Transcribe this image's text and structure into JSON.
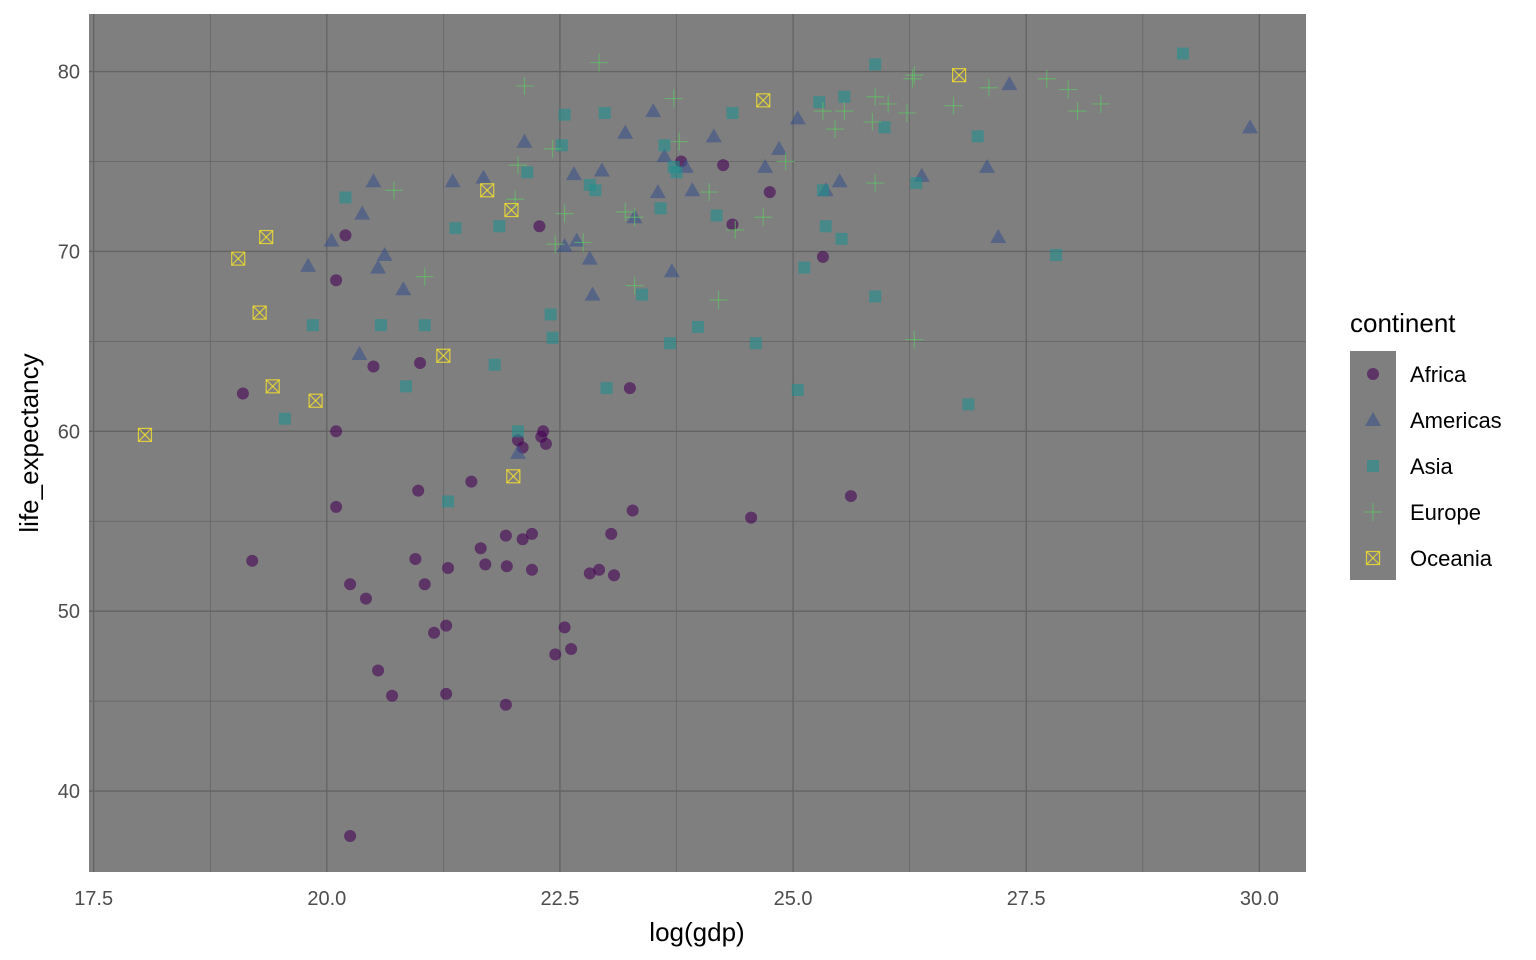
{
  "chart_data": {
    "type": "scatter",
    "title": "",
    "xlabel": "log(gdp)",
    "ylabel": "life_expectancy",
    "xlim": [
      17.45,
      30.5
    ],
    "ylim": [
      35.5,
      83.2
    ],
    "x_ticks": [
      17.5,
      20.0,
      22.5,
      25.0,
      27.5,
      30.0
    ],
    "x_tick_labels": [
      "17.5",
      "20.0",
      "22.5",
      "25.0",
      "27.5",
      "30.0"
    ],
    "y_ticks": [
      40,
      50,
      60,
      70,
      80
    ],
    "y_tick_labels": [
      "40",
      "50",
      "60",
      "70",
      "80"
    ],
    "grid": true,
    "panel_background": "#7f7f7f",
    "grid_color": "#636363",
    "point_alpha": 0.6,
    "legend": {
      "title": "continent",
      "position": "right",
      "background": "#7f7f7f"
    },
    "series": [
      {
        "name": "Africa",
        "shape": "circle",
        "color": "#440154",
        "points": [
          [
            20.25,
            37.5
          ],
          [
            19.1,
            62.1
          ],
          [
            19.2,
            52.8
          ],
          [
            20.1,
            68.4
          ],
          [
            20.2,
            70.9
          ],
          [
            20.1,
            55.8
          ],
          [
            20.1,
            60.0
          ],
          [
            20.25,
            51.5
          ],
          [
            20.42,
            50.7
          ],
          [
            20.55,
            46.7
          ],
          [
            20.5,
            63.6
          ],
          [
            20.7,
            45.3
          ],
          [
            20.95,
            52.9
          ],
          [
            20.98,
            56.7
          ],
          [
            21.0,
            63.8
          ],
          [
            21.05,
            51.5
          ],
          [
            21.15,
            48.8
          ],
          [
            21.28,
            49.2
          ],
          [
            21.3,
            52.4
          ],
          [
            21.28,
            45.4
          ],
          [
            21.55,
            57.2
          ],
          [
            21.65,
            53.5
          ],
          [
            21.7,
            52.6
          ],
          [
            21.92,
            54.2
          ],
          [
            21.93,
            52.5
          ],
          [
            21.92,
            44.8
          ],
          [
            22.05,
            59.5
          ],
          [
            22.1,
            59.1
          ],
          [
            22.1,
            54.0
          ],
          [
            22.2,
            54.3
          ],
          [
            22.2,
            52.3
          ],
          [
            22.28,
            71.4
          ],
          [
            22.3,
            59.7
          ],
          [
            22.32,
            60.0
          ],
          [
            22.35,
            59.3
          ],
          [
            22.45,
            47.6
          ],
          [
            22.55,
            49.1
          ],
          [
            22.62,
            47.9
          ],
          [
            22.82,
            52.1
          ],
          [
            22.92,
            52.3
          ],
          [
            23.05,
            54.3
          ],
          [
            23.08,
            52.0
          ],
          [
            23.25,
            62.4
          ],
          [
            23.28,
            55.6
          ],
          [
            23.8,
            75.0
          ],
          [
            24.25,
            74.8
          ],
          [
            24.35,
            71.5
          ],
          [
            24.55,
            55.2
          ],
          [
            24.75,
            73.3
          ],
          [
            25.32,
            69.7
          ],
          [
            25.62,
            56.4
          ]
        ]
      },
      {
        "name": "Americas",
        "shape": "triangle",
        "color": "#3b528b",
        "points": [
          [
            19.8,
            69.2
          ],
          [
            20.05,
            70.6
          ],
          [
            20.35,
            64.3
          ],
          [
            20.38,
            72.1
          ],
          [
            20.5,
            73.9
          ],
          [
            20.55,
            69.1
          ],
          [
            20.62,
            69.8
          ],
          [
            20.82,
            67.9
          ],
          [
            21.35,
            73.9
          ],
          [
            21.68,
            74.1
          ],
          [
            22.05,
            58.8
          ],
          [
            22.12,
            76.1
          ],
          [
            22.55,
            70.3
          ],
          [
            22.65,
            74.3
          ],
          [
            22.68,
            70.6
          ],
          [
            22.82,
            69.6
          ],
          [
            22.85,
            67.6
          ],
          [
            22.95,
            74.5
          ],
          [
            23.2,
            76.6
          ],
          [
            23.3,
            71.9
          ],
          [
            23.5,
            77.8
          ],
          [
            23.55,
            73.3
          ],
          [
            23.62,
            75.3
          ],
          [
            23.7,
            68.9
          ],
          [
            23.85,
            74.7
          ],
          [
            23.92,
            73.4
          ],
          [
            24.15,
            76.4
          ],
          [
            24.7,
            74.7
          ],
          [
            24.85,
            75.7
          ],
          [
            25.05,
            77.4
          ],
          [
            25.35,
            73.4
          ],
          [
            25.5,
            73.9
          ],
          [
            26.38,
            74.2
          ],
          [
            27.08,
            74.7
          ],
          [
            27.2,
            70.8
          ],
          [
            27.32,
            79.3
          ],
          [
            29.9,
            76.9
          ]
        ]
      },
      {
        "name": "Asia",
        "shape": "square",
        "color": "#21908d",
        "points": [
          [
            19.55,
            60.7
          ],
          [
            19.85,
            65.9
          ],
          [
            20.2,
            73.0
          ],
          [
            20.58,
            65.9
          ],
          [
            20.85,
            62.5
          ],
          [
            21.05,
            65.9
          ],
          [
            21.3,
            56.1
          ],
          [
            21.38,
            71.3
          ],
          [
            21.8,
            63.7
          ],
          [
            21.85,
            71.4
          ],
          [
            22.05,
            60.0
          ],
          [
            22.15,
            74.4
          ],
          [
            22.4,
            66.5
          ],
          [
            22.42,
            65.2
          ],
          [
            22.52,
            75.9
          ],
          [
            22.55,
            77.6
          ],
          [
            22.82,
            73.7
          ],
          [
            22.88,
            73.4
          ],
          [
            22.98,
            77.7
          ],
          [
            23.0,
            62.4
          ],
          [
            23.38,
            67.6
          ],
          [
            23.58,
            72.4
          ],
          [
            23.62,
            75.9
          ],
          [
            23.68,
            64.9
          ],
          [
            23.72,
            74.7
          ],
          [
            23.75,
            74.4
          ],
          [
            23.98,
            65.8
          ],
          [
            24.18,
            72.0
          ],
          [
            24.35,
            77.7
          ],
          [
            24.6,
            64.9
          ],
          [
            25.05,
            62.3
          ],
          [
            25.12,
            69.1
          ],
          [
            25.28,
            78.3
          ],
          [
            25.32,
            73.4
          ],
          [
            25.35,
            71.4
          ],
          [
            25.52,
            70.7
          ],
          [
            25.55,
            78.6
          ],
          [
            25.88,
            67.5
          ],
          [
            25.88,
            80.4
          ],
          [
            25.98,
            76.9
          ],
          [
            26.32,
            73.8
          ],
          [
            26.88,
            61.5
          ],
          [
            26.98,
            76.4
          ],
          [
            27.82,
            69.8
          ],
          [
            29.18,
            81.0
          ]
        ]
      },
      {
        "name": "Europe",
        "shape": "plus",
        "color": "#5ec962",
        "points": [
          [
            20.72,
            73.4
          ],
          [
            21.05,
            68.6
          ],
          [
            22.02,
            72.9
          ],
          [
            22.05,
            74.8
          ],
          [
            22.12,
            79.2
          ],
          [
            22.42,
            75.7
          ],
          [
            22.45,
            70.4
          ],
          [
            22.55,
            72.1
          ],
          [
            22.75,
            70.5
          ],
          [
            22.92,
            80.5
          ],
          [
            23.2,
            72.2
          ],
          [
            23.3,
            71.9
          ],
          [
            23.3,
            68.1
          ],
          [
            23.72,
            78.5
          ],
          [
            23.78,
            76.1
          ],
          [
            24.1,
            73.3
          ],
          [
            24.2,
            67.3
          ],
          [
            24.38,
            71.2
          ],
          [
            24.68,
            71.9
          ],
          [
            24.92,
            75.0
          ],
          [
            25.32,
            77.8
          ],
          [
            25.45,
            76.8
          ],
          [
            25.55,
            77.8
          ],
          [
            25.85,
            77.2
          ],
          [
            25.88,
            73.8
          ],
          [
            25.88,
            78.6
          ],
          [
            26.02,
            78.2
          ],
          [
            26.22,
            77.7
          ],
          [
            26.28,
            79.6
          ],
          [
            26.3,
            79.8
          ],
          [
            26.3,
            65.1
          ],
          [
            26.72,
            78.1
          ],
          [
            27.1,
            79.1
          ],
          [
            27.72,
            79.6
          ],
          [
            27.95,
            79.0
          ],
          [
            28.05,
            77.8
          ],
          [
            28.3,
            78.2
          ]
        ]
      },
      {
        "name": "Oceania",
        "shape": "square-cross",
        "color": "#fde725",
        "points": [
          [
            18.05,
            59.8
          ],
          [
            19.05,
            69.6
          ],
          [
            19.28,
            66.6
          ],
          [
            19.35,
            70.8
          ],
          [
            19.42,
            62.5
          ],
          [
            19.88,
            61.7
          ],
          [
            21.25,
            64.2
          ],
          [
            21.72,
            73.4
          ],
          [
            21.98,
            72.3
          ],
          [
            22.0,
            57.5
          ],
          [
            24.68,
            78.4
          ],
          [
            26.78,
            79.8
          ]
        ]
      }
    ]
  }
}
